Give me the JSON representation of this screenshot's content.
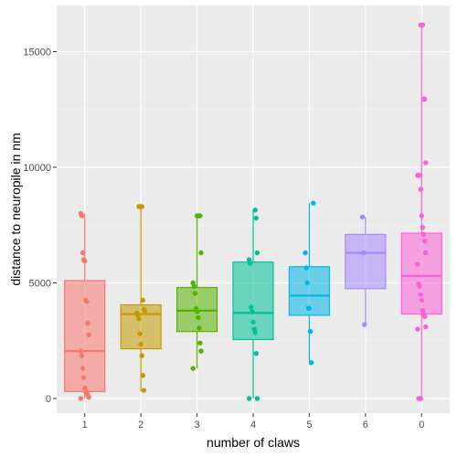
{
  "chart_data": {
    "type": "box",
    "xlabel": "number of claws",
    "ylabel": "distance to neuropile in nm",
    "ylim": [
      -400,
      16500
    ],
    "yticks": [
      0,
      5000,
      10000,
      15000
    ],
    "ytick_labels": [
      "0",
      "5000",
      "10000",
      "15000"
    ],
    "grid": true,
    "legend": "none",
    "background": "#EBEBEB",
    "categories": [
      "1",
      "2",
      "3",
      "4",
      "5",
      "6",
      "0"
    ],
    "colors": [
      "#F8766D",
      "#C49A00",
      "#53B400",
      "#00C094",
      "#00B6EB",
      "#A58AFF",
      "#FB61D7"
    ],
    "boxes": [
      {
        "category": "1",
        "q1": 300,
        "median": 2050,
        "q3": 5100,
        "whisker_low": 0,
        "whisker_high": 8000
      },
      {
        "category": "2",
        "q1": 2150,
        "median": 3650,
        "q3": 4050,
        "whisker_low": 300,
        "whisker_high": 8300
      },
      {
        "category": "3",
        "q1": 2900,
        "median": 3800,
        "q3": 4800,
        "whisker_low": 1300,
        "whisker_high": 7900
      },
      {
        "category": "4",
        "q1": 2550,
        "median": 3700,
        "q3": 5900,
        "whisker_low": 0,
        "whisker_high": 8150
      },
      {
        "category": "5",
        "q1": 3600,
        "median": 4450,
        "q3": 5700,
        "whisker_low": 1550,
        "whisker_high": 8450
      },
      {
        "category": "6",
        "q1": 4750,
        "median": 6300,
        "q3": 7100,
        "whisker_low": 3200,
        "whisker_high": 7850
      },
      {
        "category": "0",
        "q1": 3650,
        "median": 5300,
        "q3": 7150,
        "whisker_low": 0,
        "whisker_high": 16150
      }
    ],
    "points": [
      {
        "category": "1",
        "values": [
          8000,
          7900,
          6300,
          6000,
          5950,
          4250,
          4200,
          3250,
          2750,
          2050,
          1850,
          1300,
          900,
          450,
          300,
          250,
          150,
          50,
          0
        ]
      },
      {
        "category": "2",
        "values": [
          8300,
          8300,
          8300,
          8300,
          4250,
          3850,
          3800,
          3700,
          3600,
          3450,
          2800,
          2350,
          1850,
          1000,
          350
        ]
      },
      {
        "category": "3",
        "values": [
          7900,
          7900,
          7900,
          7900,
          6300,
          5000,
          4850,
          4550,
          3900,
          3750,
          3500,
          3050,
          2400,
          2050,
          1300
        ]
      },
      {
        "category": "4",
        "values": [
          8150,
          7800,
          6300,
          6000,
          5850,
          3950,
          3750,
          3300,
          3000,
          2850,
          1950,
          0,
          0
        ]
      },
      {
        "category": "5",
        "values": [
          8450,
          6300,
          5650,
          5000,
          3900,
          3900,
          2900,
          1550
        ]
      },
      {
        "category": "6",
        "values": [
          7850,
          6300,
          3200
        ]
      },
      {
        "category": "0",
        "values": [
          16150,
          16150,
          16150,
          12950,
          12950,
          10200,
          9650,
          9650,
          9650,
          9050,
          7900,
          7400,
          7100,
          6800,
          6300,
          5800,
          4950,
          4850,
          4500,
          4250,
          3800,
          3650,
          3550,
          3100,
          3000,
          0,
          0,
          0
        ]
      }
    ]
  }
}
